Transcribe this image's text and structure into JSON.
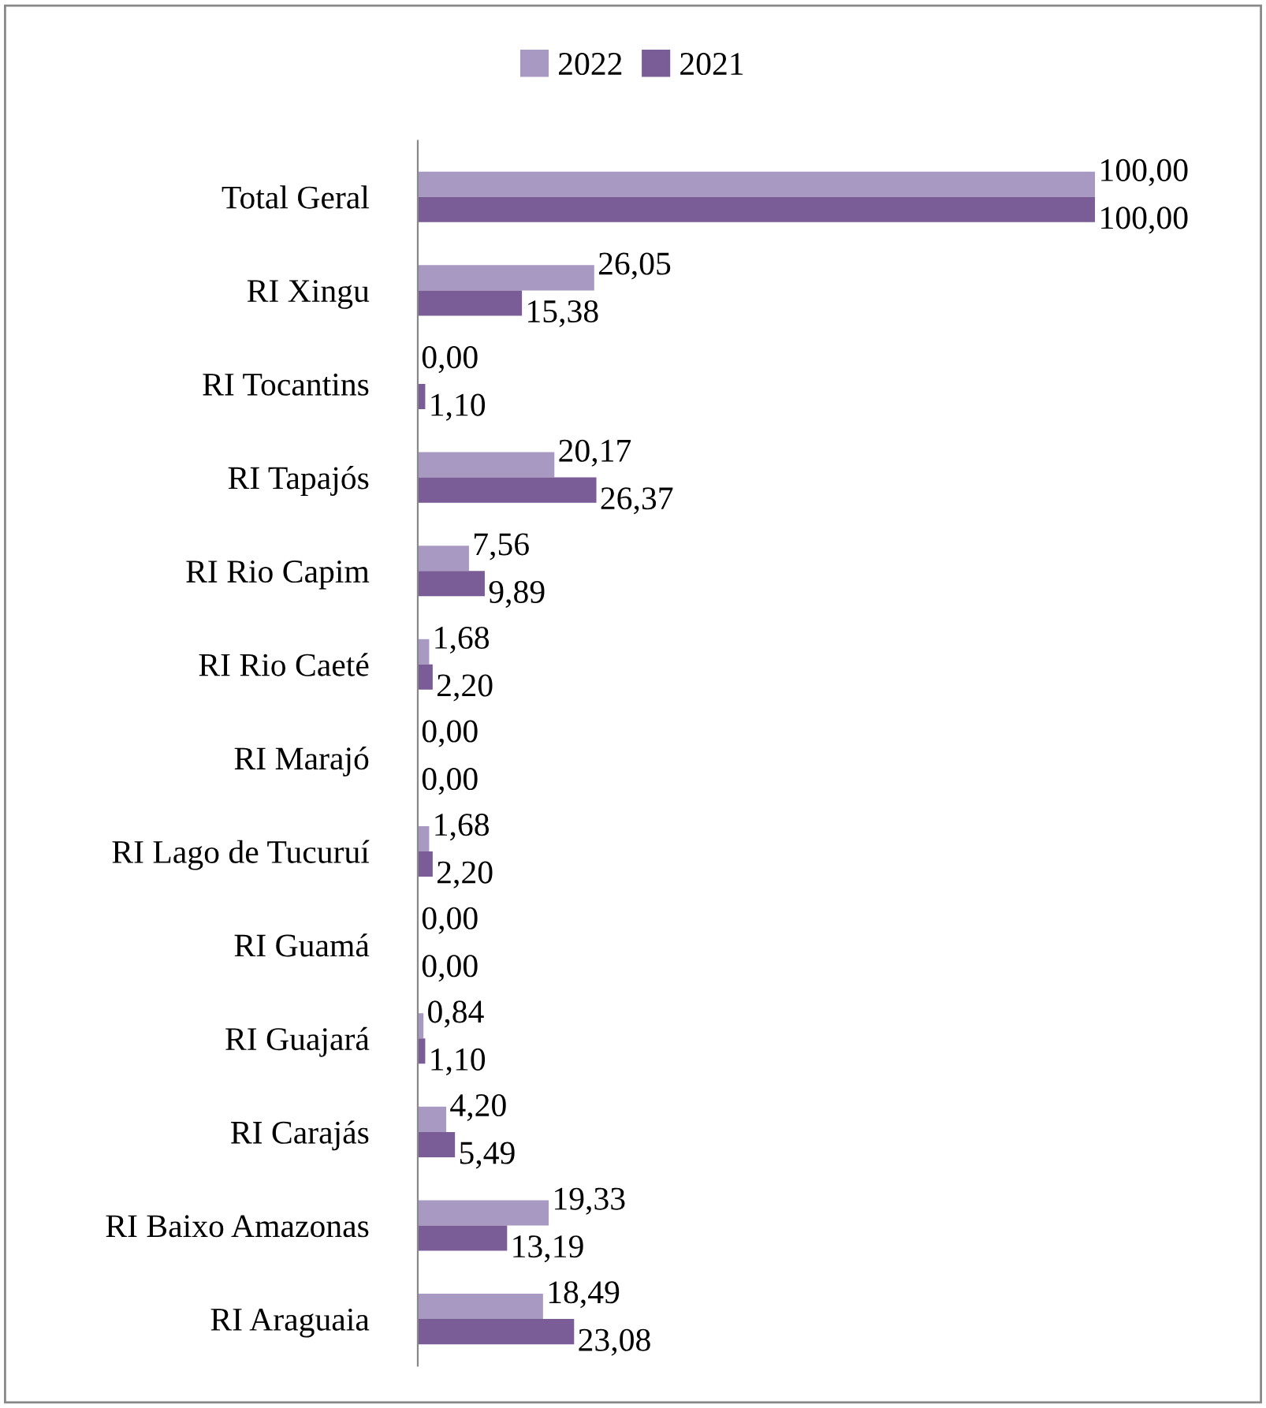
{
  "chart_data": {
    "type": "bar",
    "orientation": "horizontal",
    "legend": "top",
    "grid": false,
    "categories": [
      "Total Geral",
      "RI Xingu",
      "RI Tocantins",
      "RI Tapajós",
      "RI Rio Capim",
      "RI Rio Caeté",
      "RI Marajó",
      "RI Lago de Tucuruí",
      "RI Guamá",
      "RI Guajará",
      "RI Carajás",
      "RI Baixo Amazonas",
      "RI Araguaia"
    ],
    "series": [
      {
        "name": "2022",
        "color": "#a899c2",
        "values": [
          100.0,
          26.05,
          0.0,
          20.17,
          7.56,
          1.68,
          0.0,
          1.68,
          0.0,
          0.84,
          4.2,
          19.33,
          18.49
        ],
        "value_labels": [
          "100,00",
          "26,05",
          "0,00",
          "20,17",
          "7,56",
          "1,68",
          "0,00",
          "1,68",
          "0,00",
          "0,84",
          "4,20",
          "19,33",
          "18,49"
        ]
      },
      {
        "name": "2021",
        "color": "#7a5c96",
        "values": [
          100.0,
          15.38,
          1.1,
          26.37,
          9.89,
          2.2,
          0.0,
          2.2,
          0.0,
          1.1,
          5.49,
          13.19,
          23.08
        ],
        "value_labels": [
          "100,00",
          "15,38",
          "1,10",
          "26,37",
          "9,89",
          "2,20",
          "0,00",
          "2,20",
          "0,00",
          "1,10",
          "5,49",
          "13,19",
          "23,08"
        ]
      }
    ]
  }
}
